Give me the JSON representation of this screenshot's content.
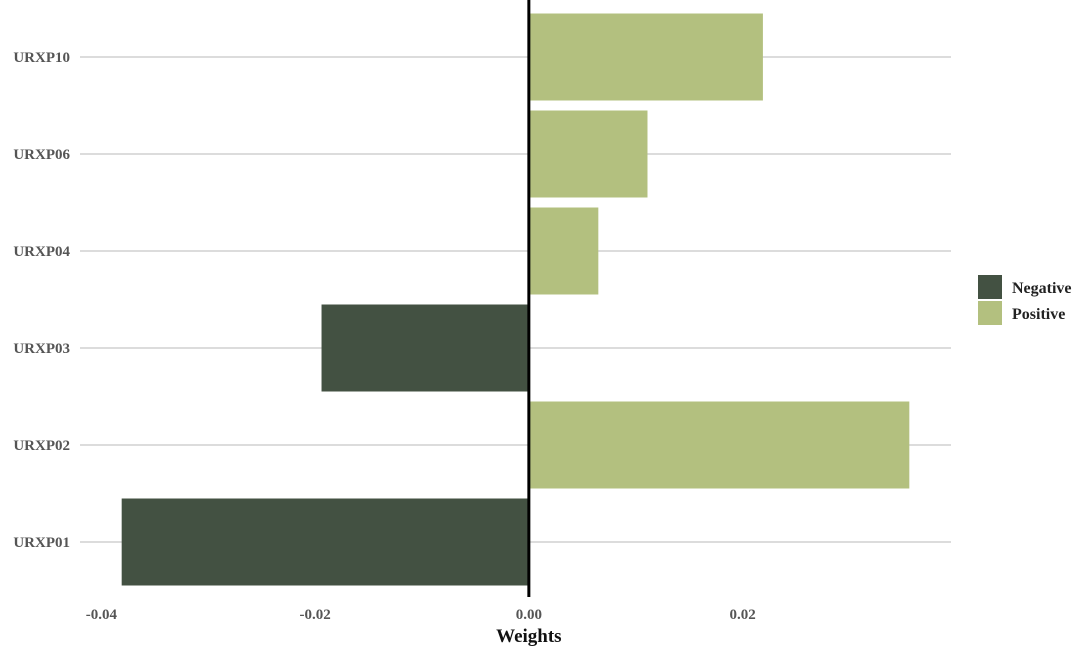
{
  "chart_data": {
    "type": "bar",
    "orientation": "horizontal",
    "categories": [
      "URXP01",
      "URXP02",
      "URXP03",
      "URXP04",
      "URXP06",
      "URXP10"
    ],
    "values": [
      -0.0381,
      0.0356,
      -0.0194,
      0.0065,
      0.0111,
      0.0219
    ],
    "xlabel": "Weights",
    "ylabel": "",
    "xlim": [
      -0.042,
      0.0395
    ],
    "xticks": [
      -0.04,
      -0.02,
      0.0,
      0.02
    ],
    "xtick_labels": [
      "-0.04",
      "-0.02",
      "0.00",
      "0.02"
    ],
    "grid": "horizontal",
    "zero_line": true,
    "legend": {
      "position": "right",
      "entries": [
        {
          "label": "Negative",
          "color": "#435142"
        },
        {
          "label": "Positive",
          "color": "#b3c07f"
        }
      ]
    },
    "colors": {
      "negative": "#435142",
      "positive": "#b3c07f"
    }
  }
}
